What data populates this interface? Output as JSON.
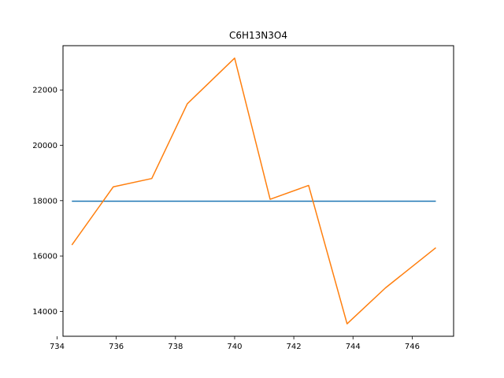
{
  "chart_data": {
    "type": "line",
    "title": "C6H13N3O4",
    "xlabel": "",
    "ylabel": "",
    "xlim": [
      734.2,
      747.4
    ],
    "ylim": [
      13100,
      23600
    ],
    "x_ticks": [
      734,
      736,
      738,
      740,
      742,
      744,
      746
    ],
    "y_ticks": [
      14000,
      16000,
      18000,
      20000,
      22000
    ],
    "grid": false,
    "legend": "none",
    "series": [
      {
        "color": "#1f77b4",
        "x": [
          734.5,
          746.8
        ],
        "y": [
          17980,
          17980
        ]
      },
      {
        "color": "#ff7f0e",
        "x": [
          734.5,
          735.9,
          737.2,
          738.4,
          740.0,
          741.2,
          742.5,
          743.8,
          745.1,
          746.8
        ],
        "y": [
          16400,
          18500,
          18800,
          21500,
          23150,
          18050,
          18550,
          13550,
          14850,
          16300
        ]
      }
    ]
  }
}
